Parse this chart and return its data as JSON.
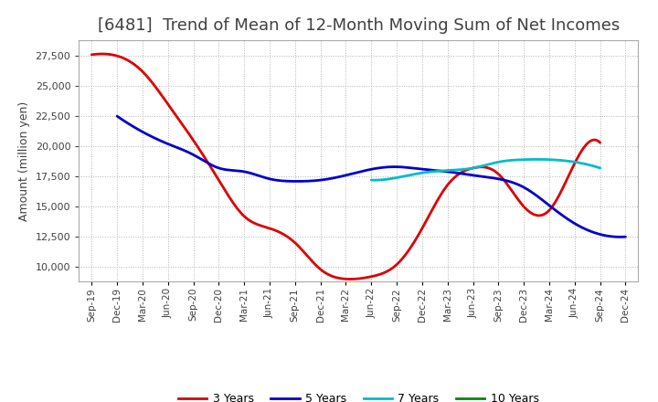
{
  "title": "[6481]  Trend of Mean of 12-Month Moving Sum of Net Incomes",
  "ylabel": "Amount (million yen)",
  "background_color": "#ffffff",
  "grid_color": "#aaaaaa",
  "title_fontsize": 13,
  "title_fontweight": "normal",
  "title_color": "#404040",
  "legend_labels": [
    "3 Years",
    "5 Years",
    "7 Years",
    "10 Years"
  ],
  "legend_colors": [
    "#dd0000",
    "#0000cc",
    "#00bbcc",
    "#008800"
  ],
  "x_labels": [
    "Sep-19",
    "Dec-19",
    "Mar-20",
    "Jun-20",
    "Sep-20",
    "Dec-20",
    "Mar-21",
    "Jun-21",
    "Sep-21",
    "Dec-21",
    "Mar-22",
    "Jun-22",
    "Sep-22",
    "Dec-22",
    "Mar-23",
    "Jun-23",
    "Sep-23",
    "Dec-23",
    "Mar-24",
    "Jun-24",
    "Sep-24",
    "Dec-24"
  ],
  "ylim": [
    8800,
    28800
  ],
  "yticks": [
    10000,
    12500,
    15000,
    17500,
    20000,
    22500,
    25000,
    27500
  ],
  "series_3yr": [
    27600,
    27500,
    26200,
    23500,
    20500,
    17200,
    14200,
    13200,
    12000,
    9800,
    9000,
    9200,
    10200,
    13200,
    16800,
    18200,
    17700,
    15000,
    14700,
    18600,
    20300,
    null
  ],
  "series_5yr": [
    null,
    22500,
    21200,
    20200,
    19300,
    18200,
    17900,
    17300,
    17100,
    17200,
    17600,
    18100,
    18300,
    18100,
    17900,
    17600,
    17300,
    16600,
    15100,
    13600,
    12700,
    12500
  ],
  "series_7yr": [
    null,
    null,
    null,
    null,
    null,
    null,
    null,
    null,
    null,
    null,
    null,
    17200,
    17400,
    17800,
    18000,
    18200,
    18700,
    18900,
    18900,
    18700,
    18200,
    null
  ],
  "series_10yr": [
    null,
    null,
    null,
    null,
    null,
    null,
    null,
    null,
    null,
    null,
    null,
    null,
    null,
    null,
    null,
    null,
    null,
    null,
    null,
    null,
    null,
    null
  ]
}
